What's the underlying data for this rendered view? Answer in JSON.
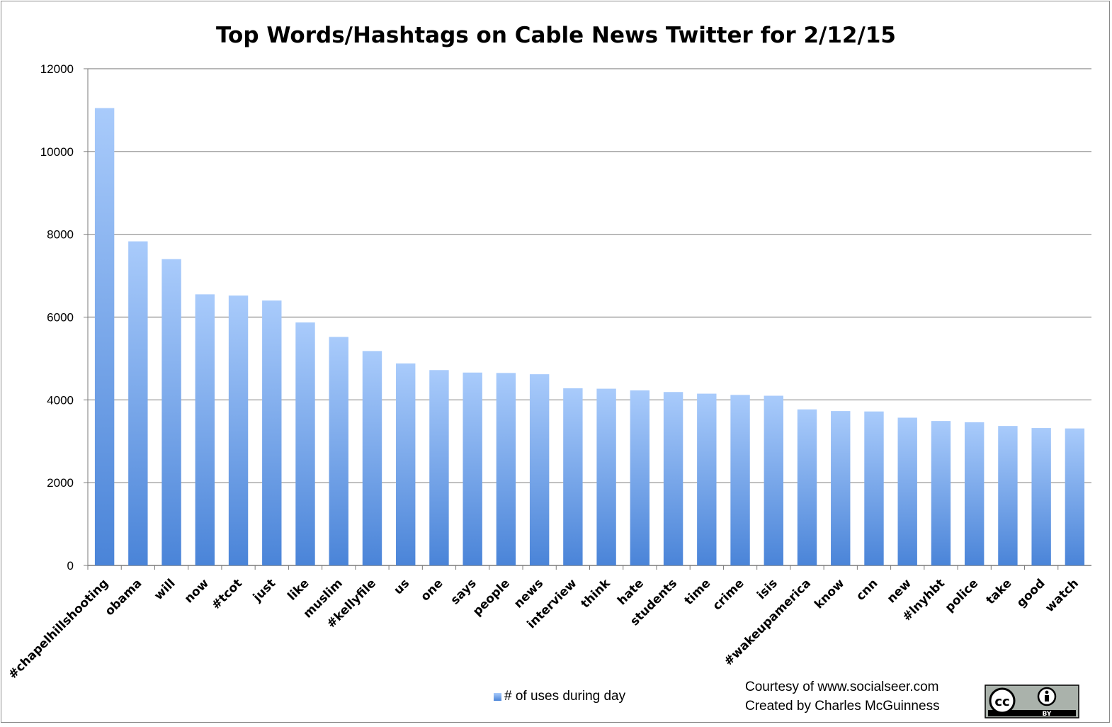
{
  "chart_data": {
    "type": "bar",
    "title": "Top Words/Hashtags on Cable News Twitter for 2/12/15",
    "xlabel": "",
    "ylabel": "",
    "ylim": [
      0,
      12000
    ],
    "yticks": [
      0,
      2000,
      4000,
      6000,
      8000,
      10000,
      12000
    ],
    "grid": true,
    "legend_position": "bottom",
    "categories": [
      "#chapelhillshooting",
      "obama",
      "will",
      "now",
      "#tcot",
      "just",
      "like",
      "muslim",
      "#kellyfile",
      "us",
      "one",
      "says",
      "people",
      "news",
      "interview",
      "think",
      "hate",
      "students",
      "time",
      "crime",
      "isis",
      "#wakeupamerica",
      "know",
      "cnn",
      "new",
      "#lnyhbt",
      "police",
      "take",
      "good",
      "watch"
    ],
    "series": [
      {
        "name": "# of uses during day",
        "color": "#5b8fdc",
        "values": [
          11050,
          7830,
          7400,
          6550,
          6520,
          6400,
          5870,
          5520,
          5180,
          4880,
          4720,
          4660,
          4650,
          4620,
          4280,
          4270,
          4230,
          4190,
          4150,
          4120,
          4100,
          3770,
          3730,
          3720,
          3570,
          3490,
          3460,
          3370,
          3320,
          3310
        ]
      }
    ]
  },
  "credits": {
    "line1": "Courtesy of www.socialseer.com",
    "line2": "Created by Charles McGuinness"
  },
  "license_badge": {
    "cc_label": "cc",
    "by_label": "BY",
    "icon": "creative-commons-by-icon"
  }
}
